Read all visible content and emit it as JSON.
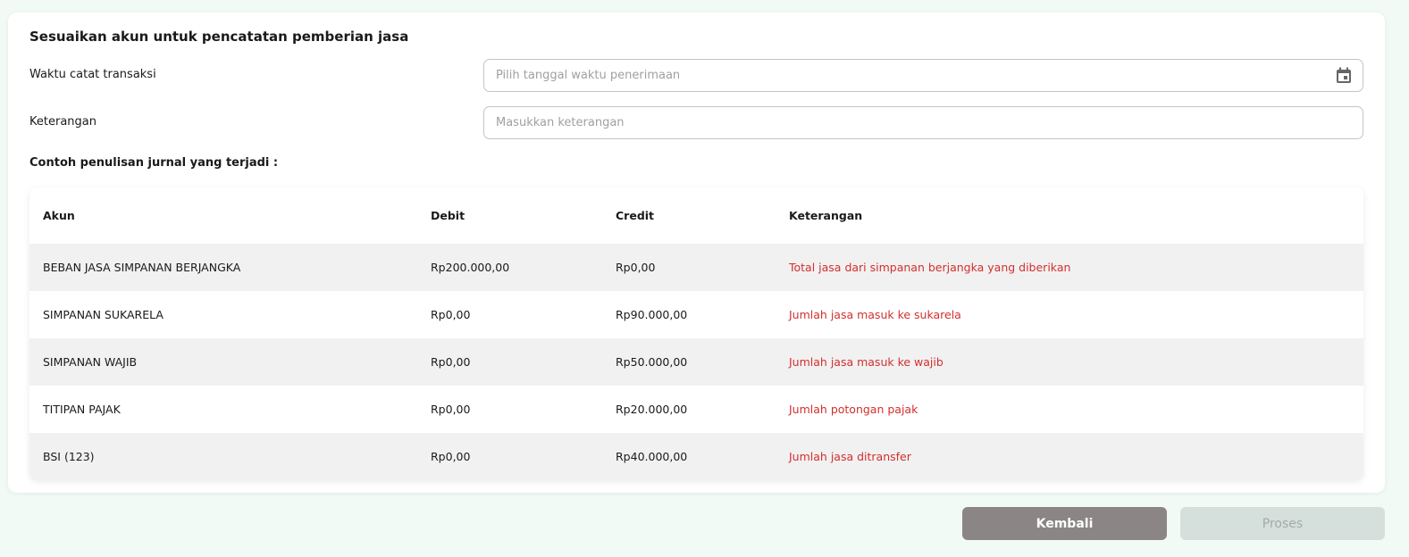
{
  "title": "Sesuaikan akun untuk pencatatan pemberian jasa",
  "fields": [
    {
      "label": "Waktu catat transaksi",
      "placeholder": "Pilih tanggal waktu penerimaan",
      "icon": "calendar-icon"
    },
    {
      "label": "Keterangan",
      "placeholder": "Masukkan keterangan"
    }
  ],
  "journal_title": "Contoh penulisan jurnal yang terjadi :",
  "table": {
    "headers": [
      "Akun",
      "Debit",
      "Credit",
      "Keterangan"
    ],
    "rows": [
      [
        "BEBAN JASA SIMPANAN BERJANGKA",
        "Rp200.000,00",
        "Rp0,00",
        "Total jasa dari simpanan berjangka yang diberikan"
      ],
      [
        "SIMPANAN SUKARELA",
        "Rp0,00",
        "Rp90.000,00",
        "Jumlah jasa masuk ke sukarela"
      ],
      [
        "SIMPANAN WAJIB",
        "Rp0,00",
        "Rp50.000,00",
        "Jumlah jasa masuk ke wajib"
      ],
      [
        "TITIPAN PAJAK",
        "Rp0,00",
        "Rp20.000,00",
        "Jumlah potongan pajak"
      ],
      [
        "BSI (123)",
        "Rp0,00",
        "Rp40.000,00",
        "Jumlah jasa ditransfer"
      ]
    ]
  },
  "buttons": {
    "back": "Kembali",
    "process": "Proses"
  },
  "colors": {
    "note": "#d32f2f",
    "back_button": "#8b8685",
    "process_disabled": "#d5dfdb"
  }
}
